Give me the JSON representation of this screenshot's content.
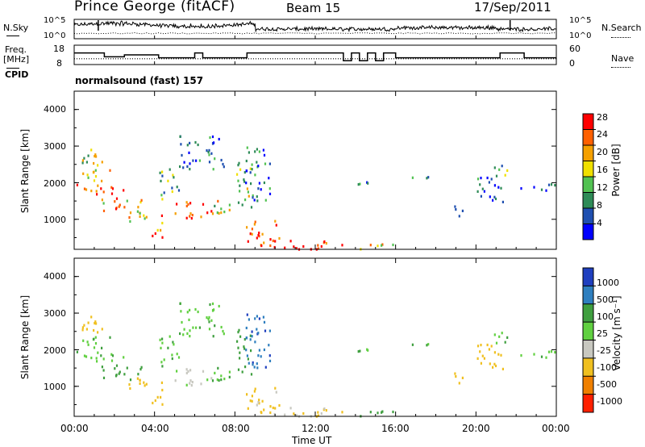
{
  "header": {
    "site": "Prince George (fitACF)",
    "beam": "Beam 15",
    "date": "17/Sep/2011"
  },
  "noise_panel": {
    "left_label": "N.Sky",
    "right_label": "N.Search",
    "left_ticks": [
      "10^5",
      "10^0"
    ],
    "right_ticks": [
      "10^5",
      "10^0"
    ]
  },
  "freq_panel": {
    "left_label_1": "Freq.",
    "left_label_2": "[MHz]",
    "right_label": "Nave",
    "left_ticks": [
      "18",
      "8"
    ],
    "right_ticks": [
      "60",
      "0"
    ]
  },
  "cpid": {
    "label": "CPID",
    "program": "normalsound (fast) 157"
  },
  "power_panel": {
    "ylabel": "Slant Range [km]",
    "yticks": [
      "4000",
      "3000",
      "2000",
      "1000"
    ],
    "colorbar_label": "Power [dB]",
    "colorbar_ticks": [
      "28",
      "24",
      "20",
      "16",
      "12",
      "8",
      "4"
    ],
    "colors": [
      "#0000ff",
      "#1f4fb0",
      "#2e8b57",
      "#52c252",
      "#f0e000",
      "#f5a000",
      "#ff6000",
      "#ff0000"
    ]
  },
  "velocity_panel": {
    "ylabel": "Slant Range [km]",
    "yticks": [
      "4000",
      "3000",
      "2000",
      "1000"
    ],
    "colorbar_label": "Velocity [m s⁻¹]",
    "colorbar_ticks": [
      "1000",
      "500",
      "100",
      "25",
      "-25",
      "-100",
      "-500",
      "-1000"
    ],
    "colors": [
      "#1f3fbf",
      "#2f7fbf",
      "#3f9f3f",
      "#60d040",
      "#c8c8c0",
      "#f0c020",
      "#f08000",
      "#ff2000"
    ]
  },
  "xaxis": {
    "label": "Time UT",
    "ticks": [
      "00:00",
      "04:00",
      "08:00",
      "12:00",
      "16:00",
      "20:00",
      "00:00"
    ]
  },
  "chart_data": {
    "type": "heatmap",
    "title": "Prince George (fitACF)",
    "x_range_hours": [
      0,
      24
    ],
    "y_range_km": [
      180,
      4500
    ],
    "power_scale_db": [
      0,
      30
    ],
    "velocity_scale_ms": [
      -1000,
      1000
    ],
    "frequency_mhz_segments": [
      {
        "start": 0,
        "end": 1.5,
        "freq": 14
      },
      {
        "start": 1.5,
        "end": 2.5,
        "freq": 12
      },
      {
        "start": 2.5,
        "end": 4.2,
        "freq": 13
      },
      {
        "start": 4.2,
        "end": 6.0,
        "freq": 11.5
      },
      {
        "start": 6.0,
        "end": 6.4,
        "freq": 14
      },
      {
        "start": 6.4,
        "end": 8.6,
        "freq": 11.5
      },
      {
        "start": 8.6,
        "end": 13.4,
        "freq": 14
      },
      {
        "start": 13.4,
        "end": 13.8,
        "freq": 10
      },
      {
        "start": 13.8,
        "end": 14.2,
        "freq": 14
      },
      {
        "start": 14.2,
        "end": 14.6,
        "freq": 10
      },
      {
        "start": 14.6,
        "end": 15.0,
        "freq": 14
      },
      {
        "start": 15.0,
        "end": 15.4,
        "freq": 10
      },
      {
        "start": 15.4,
        "end": 16.0,
        "freq": 14
      },
      {
        "start": 16.0,
        "end": 21.2,
        "freq": 11.5
      },
      {
        "start": 21.2,
        "end": 22.4,
        "freq": 14
      },
      {
        "start": 22.4,
        "end": 24.0,
        "freq": 11.5
      }
    ],
    "echo_regions": [
      {
        "t0": 0.0,
        "t1": 1.4,
        "r0": 2500,
        "r1": 3000,
        "power": 16,
        "velocity": -300
      },
      {
        "t0": 0.0,
        "t1": 2.5,
        "r0": 1700,
        "r1": 2000,
        "power": 26,
        "velocity": 10
      },
      {
        "t0": 0.3,
        "t1": 2.0,
        "r0": 2050,
        "r1": 2450,
        "power": 18,
        "velocity": 20
      },
      {
        "t0": 1.2,
        "t1": 3.4,
        "r0": 1200,
        "r1": 1600,
        "power": 20,
        "velocity": 60
      },
      {
        "t0": 2.5,
        "t1": 3.8,
        "r0": 900,
        "r1": 1300,
        "power": 18,
        "velocity": -200
      },
      {
        "t0": 3.8,
        "t1": 4.4,
        "r0": 500,
        "r1": 1200,
        "power": 24,
        "velocity": -300
      },
      {
        "t0": 4.2,
        "t1": 5.2,
        "r0": 1500,
        "r1": 2400,
        "power": 12,
        "velocity": 20
      },
      {
        "t0": 5.0,
        "t1": 6.8,
        "r0": 1000,
        "r1": 1500,
        "power": 26,
        "velocity": -40
      },
      {
        "t0": 5.2,
        "t1": 7.5,
        "r0": 2400,
        "r1": 3300,
        "power": 8,
        "velocity": 15
      },
      {
        "t0": 6.8,
        "t1": 8.0,
        "r0": 1100,
        "r1": 1600,
        "power": 16,
        "velocity": 10
      },
      {
        "t0": 8.0,
        "t1": 8.8,
        "r0": 1200,
        "r1": 2600,
        "power": 14,
        "velocity": 80
      },
      {
        "t0": 8.5,
        "t1": 9.8,
        "r0": 1500,
        "r1": 3000,
        "power": 8,
        "velocity": 400
      },
      {
        "t0": 8.5,
        "t1": 10.2,
        "r0": 200,
        "r1": 1000,
        "power": 26,
        "velocity": -150
      },
      {
        "t0": 10.0,
        "t1": 13.5,
        "r0": 200,
        "r1": 450,
        "power": 26,
        "velocity": -120
      },
      {
        "t0": 13.5,
        "t1": 16.0,
        "r0": 200,
        "r1": 350,
        "power": 18,
        "velocity": 60
      },
      {
        "t0": 14.0,
        "t1": 14.8,
        "r0": 1800,
        "r1": 2100,
        "power": 6,
        "velocity": 10
      },
      {
        "t0": 16.8,
        "t1": 17.6,
        "r0": 2000,
        "r1": 2200,
        "power": 6,
        "velocity": 10
      },
      {
        "t0": 18.8,
        "t1": 19.4,
        "r0": 1000,
        "r1": 1400,
        "power": 10,
        "velocity": -300
      },
      {
        "t0": 20.0,
        "t1": 21.5,
        "r0": 1500,
        "r1": 2200,
        "power": 8,
        "velocity": -300
      },
      {
        "t0": 20.8,
        "t1": 22.0,
        "r0": 2200,
        "r1": 2500,
        "power": 10,
        "velocity": 10
      },
      {
        "t0": 22.0,
        "t1": 24.0,
        "r0": 1800,
        "r1": 2000,
        "power": 6,
        "velocity": 5
      }
    ]
  }
}
